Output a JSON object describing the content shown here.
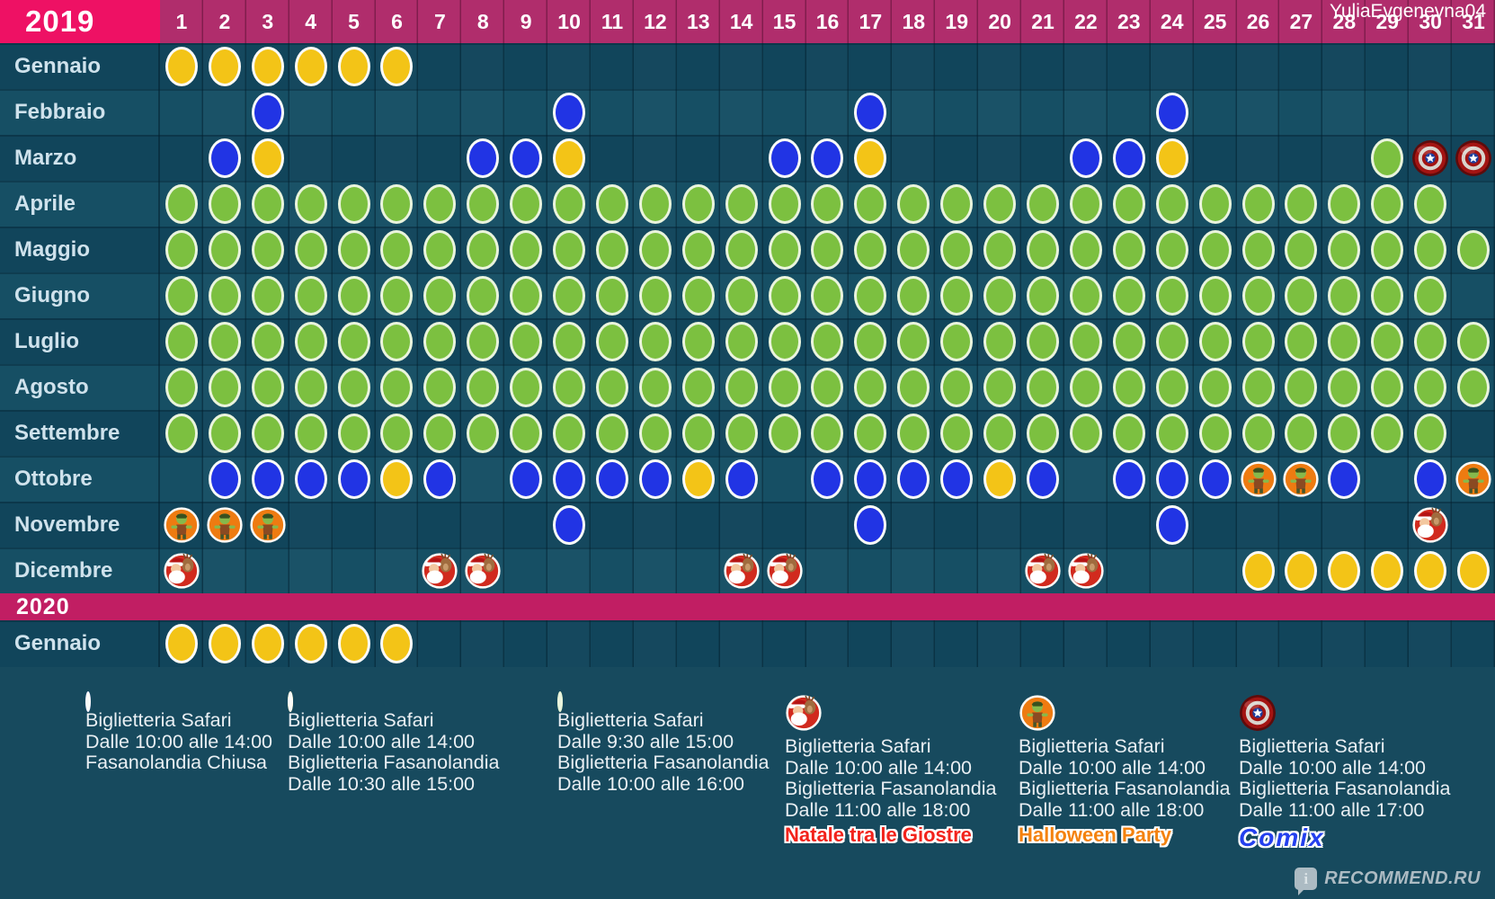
{
  "watermarks": {
    "top_right": "YuliaEvgenevna04",
    "bottom_right": "RECOMMEND.RU",
    "bottom_right_icon": "i"
  },
  "colors": {
    "year_header_bg": "#ee1164",
    "day_header_bg": "#b02d6c",
    "year_band_2020_bg": "#c11e63",
    "row_dark": "#11455b",
    "row_light": "#164f64",
    "page_bg": "#174a5e",
    "blue_dot": "#2134e4",
    "yellow_dot": "#f3c417",
    "green_dot": "#7cc040",
    "halloween_orange": "#ee7b11",
    "santa_red": "#d12a1e",
    "event_natale_color": "#f2231b",
    "event_halloween_color": "#f4820e",
    "event_comix_color": "#2440ee"
  },
  "chart_data": {
    "type": "calendar",
    "day_columns": {
      "from": 1,
      "to": 31
    },
    "sections": [
      {
        "year": "2019",
        "months": [
          {
            "name": "Gennaio",
            "marks": [
              {
                "days": "1-6",
                "type": "yellow"
              }
            ]
          },
          {
            "name": "Febbraio",
            "marks": [
              {
                "days": "3",
                "type": "blue"
              },
              {
                "days": "10",
                "type": "blue"
              },
              {
                "days": "17",
                "type": "blue"
              },
              {
                "days": "24",
                "type": "blue"
              }
            ]
          },
          {
            "name": "Marzo",
            "marks": [
              {
                "days": "2",
                "type": "blue"
              },
              {
                "days": "3",
                "type": "yellow"
              },
              {
                "days": "8-9",
                "type": "blue"
              },
              {
                "days": "10",
                "type": "yellow"
              },
              {
                "days": "15-16",
                "type": "blue"
              },
              {
                "days": "17",
                "type": "yellow"
              },
              {
                "days": "22-23",
                "type": "blue"
              },
              {
                "days": "24",
                "type": "yellow"
              },
              {
                "days": "29",
                "type": "green"
              },
              {
                "days": "30-31",
                "type": "comix"
              }
            ]
          },
          {
            "name": "Aprile",
            "marks": [
              {
                "days": "1-30",
                "type": "green"
              }
            ]
          },
          {
            "name": "Maggio",
            "marks": [
              {
                "days": "1-31",
                "type": "green"
              }
            ]
          },
          {
            "name": "Giugno",
            "marks": [
              {
                "days": "1-30",
                "type": "green"
              }
            ]
          },
          {
            "name": "Luglio",
            "marks": [
              {
                "days": "1-31",
                "type": "green"
              }
            ]
          },
          {
            "name": "Agosto",
            "marks": [
              {
                "days": "1-31",
                "type": "green"
              }
            ]
          },
          {
            "name": "Settembre",
            "marks": [
              {
                "days": "1-30",
                "type": "green"
              }
            ]
          },
          {
            "name": "Ottobre",
            "marks": [
              {
                "days": "2-5",
                "type": "blue"
              },
              {
                "days": "6",
                "type": "yellow"
              },
              {
                "days": "7",
                "type": "blue"
              },
              {
                "days": "9-12",
                "type": "blue"
              },
              {
                "days": "13",
                "type": "yellow"
              },
              {
                "days": "14",
                "type": "blue"
              },
              {
                "days": "16-19",
                "type": "blue"
              },
              {
                "days": "20",
                "type": "yellow"
              },
              {
                "days": "21",
                "type": "blue"
              },
              {
                "days": "23-25",
                "type": "blue"
              },
              {
                "days": "26-27",
                "type": "halloween"
              },
              {
                "days": "28",
                "type": "blue"
              },
              {
                "days": "30",
                "type": "blue"
              },
              {
                "days": "31",
                "type": "halloween"
              }
            ]
          },
          {
            "name": "Novembre",
            "marks": [
              {
                "days": "1-3",
                "type": "halloween"
              },
              {
                "days": "10",
                "type": "blue"
              },
              {
                "days": "17",
                "type": "blue"
              },
              {
                "days": "24",
                "type": "blue"
              },
              {
                "days": "30",
                "type": "santa"
              }
            ]
          },
          {
            "name": "Dicembre",
            "marks": [
              {
                "days": "1",
                "type": "santa"
              },
              {
                "days": "7-8",
                "type": "santa"
              },
              {
                "days": "14-15",
                "type": "santa"
              },
              {
                "days": "21-22",
                "type": "santa"
              },
              {
                "days": "26-31",
                "type": "yellow"
              }
            ]
          }
        ]
      },
      {
        "year": "2020",
        "months": [
          {
            "name": "Gennaio",
            "marks": [
              {
                "days": "1-6",
                "type": "yellow"
              }
            ]
          }
        ]
      }
    ]
  },
  "legend": [
    {
      "type": "blue",
      "lines": [
        "Biglietteria Safari",
        "Dalle 10:00 alle 14:00",
        "Fasanolandia Chiusa"
      ]
    },
    {
      "type": "yellow",
      "lines": [
        "Biglietteria Safari",
        "Dalle 10:00 alle 14:00",
        "Biglietteria Fasanolandia",
        "Dalle 10:30 alle 15:00"
      ]
    },
    {
      "type": "green",
      "lines": [
        "Biglietteria Safari",
        "Dalle 9:30 alle 15:00",
        "Biglietteria Fasanolandia",
        "Dalle 10:00 alle 16:00"
      ]
    },
    {
      "type": "santa",
      "lines": [
        "Biglietteria Safari",
        "Dalle 10:00 alle 14:00",
        "Biglietteria Fasanolandia",
        "Dalle 11:00 alle 18:00"
      ],
      "event": {
        "text": "Natale tra le Giostre",
        "style": "natale"
      }
    },
    {
      "type": "halloween",
      "lines": [
        "Biglietteria Safari",
        "Dalle 10:00 alle 14:00",
        "Biglietteria Fasanolandia",
        "Dalle 11:00 alle 18:00"
      ],
      "event": {
        "text": "Halloween Party",
        "style": "halloween"
      }
    },
    {
      "type": "comix",
      "lines": [
        "Biglietteria Safari",
        "Dalle 10:00 alle 14:00",
        "Biglietteria Fasanolandia",
        "Dalle 11:00 alle 17:00"
      ],
      "event": {
        "text": "Comix",
        "style": "comix"
      }
    }
  ]
}
